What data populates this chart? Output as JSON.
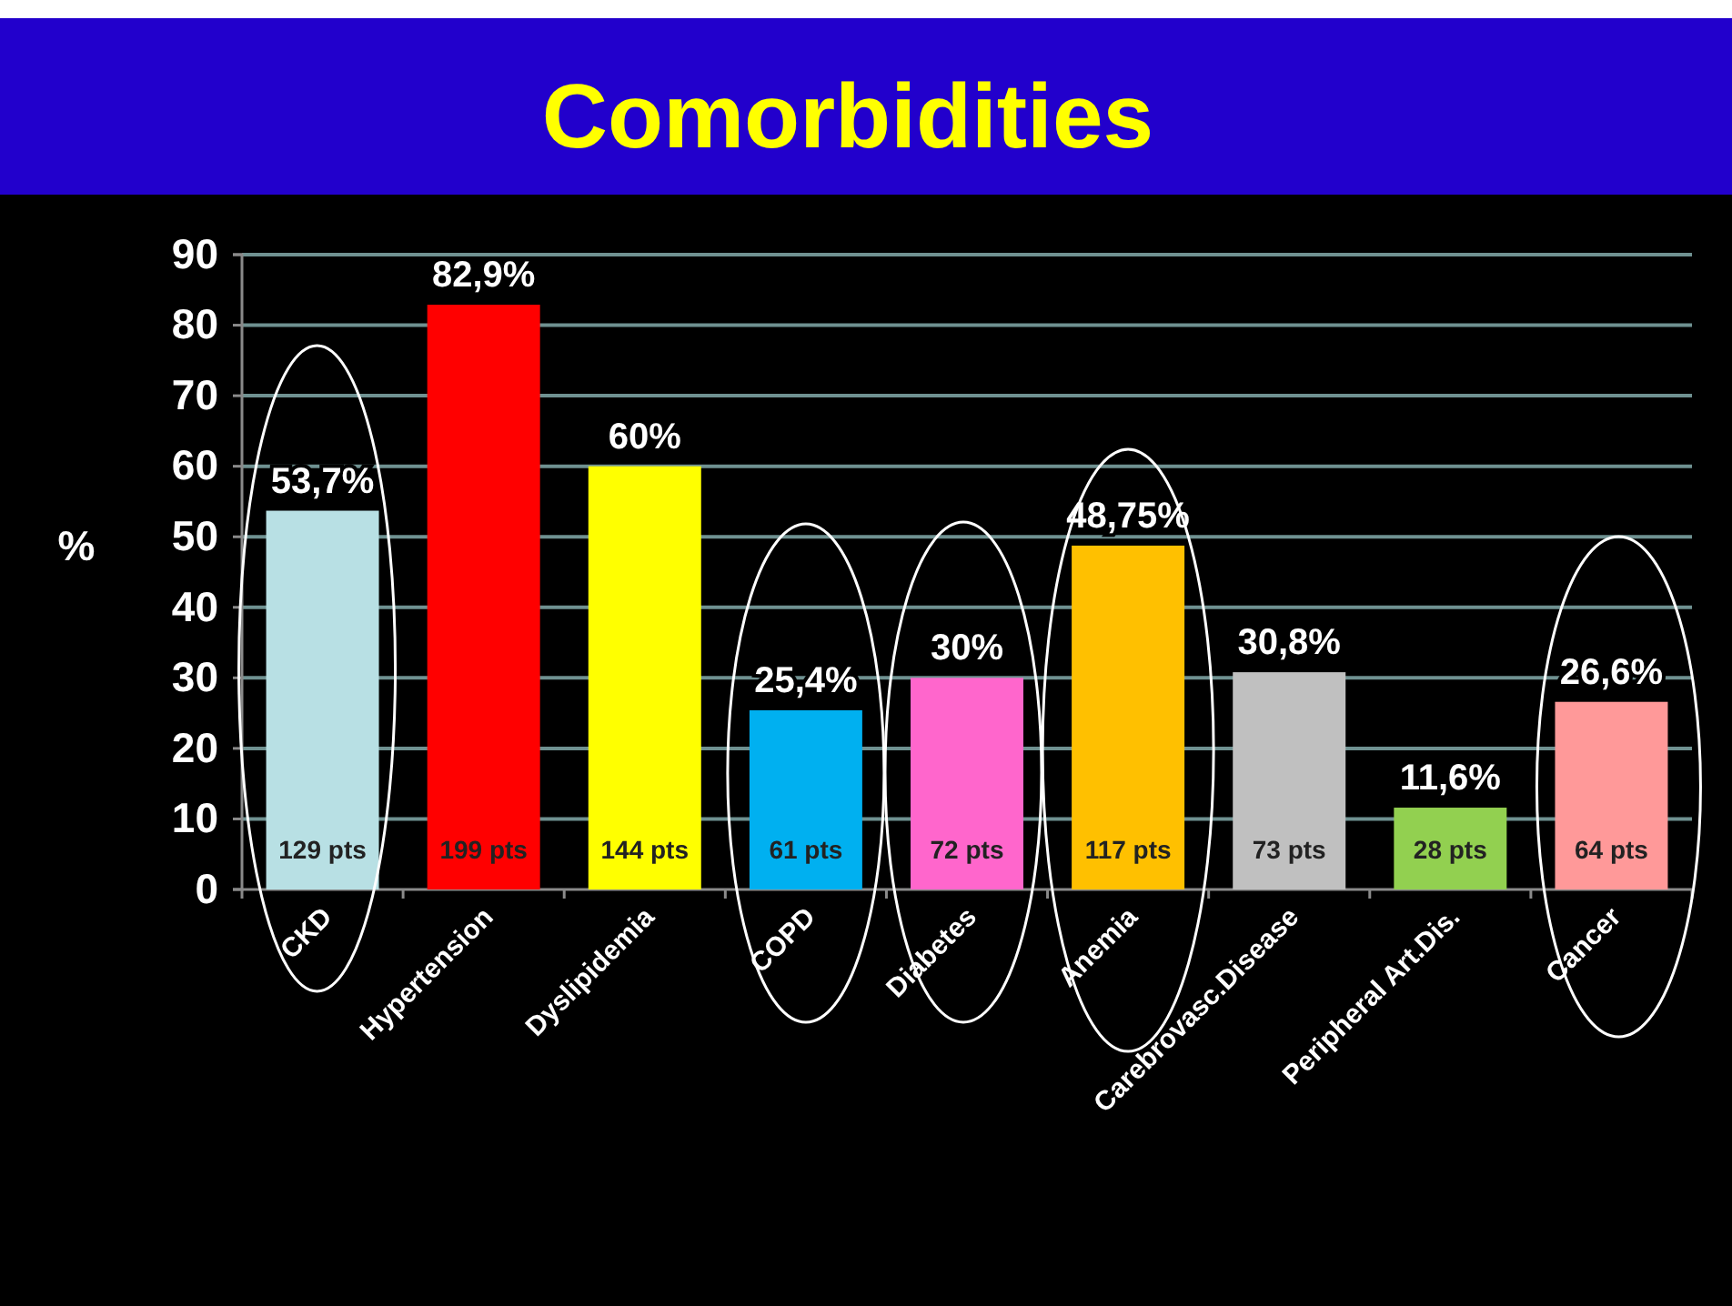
{
  "chart_data": {
    "type": "bar",
    "title": "Comorbidities",
    "ylabel": "%",
    "categories": [
      "CKD",
      "Hypertension",
      "Dyslipidemia",
      "COPD",
      "Diabetes",
      "Anemia",
      "Carebrovasc.Disease",
      "Peripheral Art.Dis.",
      "Cancer"
    ],
    "values": [
      53.7,
      82.9,
      60,
      25.4,
      30,
      48.75,
      30.8,
      11.6,
      26.6
    ],
    "colors": [
      "#b8e0e4",
      "#ff0000",
      "#ffff00",
      "#00b0f0",
      "#ff66cc",
      "#ffc000",
      "#c0c0c0",
      "#92d050",
      "#ff9999"
    ],
    "value_labels": [
      "53,7%",
      "82,9%",
      "60%",
      "25,4%",
      "30%",
      "48,75%",
      "30,8%",
      "11,6%",
      "26,6%"
    ],
    "ylim": [
      0,
      90
    ],
    "yticks": [
      0,
      10,
      20,
      30,
      40,
      50,
      60,
      70,
      80,
      90
    ],
    "grid": "y",
    "annotations": [
      "129 pts",
      "199 pts",
      "144 pts",
      "61 pts",
      "72 pts",
      "117 pts",
      "73 pts",
      "28 pts",
      "64 pts"
    ]
  }
}
